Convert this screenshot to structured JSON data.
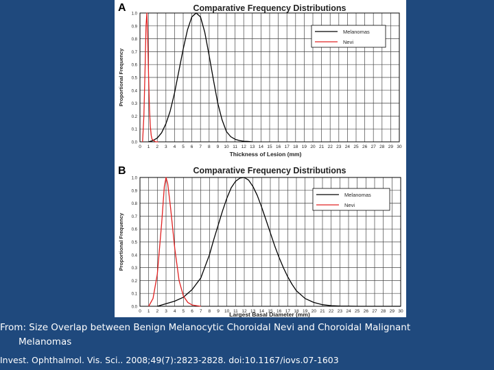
{
  "colors": {
    "background": "#1f497d",
    "caption_text": "#ffffff",
    "melanomas": "#000000",
    "nevi": "#e02020",
    "grid": "#444444"
  },
  "caption": {
    "from_line1": "From: Size Overlap between Benign Melanocytic Choroidal Nevi and Choroidal Malignant",
    "from_line2": "Melanomas",
    "citation": "Invest. Ophthalmol. Vis. Sci.. 2008;49(7):2823-2828. doi:10.1167/iovs.07-1603"
  },
  "chart_data": [
    {
      "panel": "A",
      "type": "line",
      "title": "Comparative Frequency Distributions",
      "xlabel": "Thickness of Lesion (mm)",
      "ylabel": "Proportional Frequency",
      "xlim": [
        0,
        30
      ],
      "ylim": [
        0,
        1.0
      ],
      "xticks": [
        0,
        1,
        2,
        3,
        4,
        5,
        6,
        7,
        8,
        9,
        10,
        11,
        12,
        13,
        14,
        15,
        16,
        17,
        18,
        19,
        20,
        21,
        22,
        23,
        24,
        25,
        26,
        27,
        28,
        29,
        30
      ],
      "yticks": [
        0.0,
        0.1,
        0.2,
        0.3,
        0.4,
        0.5,
        0.6,
        0.7,
        0.8,
        0.9,
        1.0
      ],
      "grid": true,
      "legend": {
        "position": "top-right",
        "entries": [
          "Melanomas",
          "Nevi"
        ]
      },
      "series": [
        {
          "name": "Melanomas",
          "x": [
            1.0,
            1.5,
            2.0,
            2.5,
            3.0,
            3.5,
            4.0,
            4.5,
            5.0,
            5.5,
            6.0,
            6.5,
            7.0,
            7.5,
            8.0,
            8.5,
            9.0,
            9.5,
            10.0,
            10.5,
            11.0,
            11.5,
            12.0,
            12.5,
            13.0
          ],
          "values": [
            0.0,
            0.01,
            0.03,
            0.07,
            0.14,
            0.24,
            0.38,
            0.55,
            0.72,
            0.87,
            0.97,
            1.0,
            0.97,
            0.85,
            0.67,
            0.48,
            0.3,
            0.17,
            0.08,
            0.04,
            0.02,
            0.01,
            0.005,
            0.003,
            0.0
          ]
        },
        {
          "name": "Nevi",
          "x": [
            0.3,
            0.45,
            0.6,
            0.7,
            0.8,
            0.9,
            1.0,
            1.1,
            1.2,
            1.3,
            1.4,
            1.6,
            1.8,
            2.1
          ],
          "values": [
            0.0,
            0.2,
            0.6,
            0.9,
            1.0,
            0.8,
            0.5,
            0.25,
            0.12,
            0.05,
            0.02,
            0.01,
            0.0,
            0.0
          ]
        }
      ]
    },
    {
      "panel": "B",
      "type": "line",
      "title": "Comparative Frequency Distributions",
      "xlabel": "Largest Basal Diameter (mm)",
      "ylabel": "Proportional Frequency",
      "xlim": [
        0,
        30
      ],
      "ylim": [
        0,
        1.0
      ],
      "xticks": [
        0,
        1,
        2,
        3,
        4,
        5,
        6,
        7,
        8,
        9,
        10,
        11,
        12,
        13,
        14,
        15,
        16,
        17,
        18,
        19,
        20,
        21,
        22,
        23,
        24,
        25,
        26,
        27,
        28,
        29,
        30
      ],
      "yticks": [
        0.0,
        0.1,
        0.2,
        0.3,
        0.4,
        0.5,
        0.6,
        0.7,
        0.8,
        0.9,
        1.0
      ],
      "grid": true,
      "legend": {
        "position": "top-right",
        "entries": [
          "Melanomas",
          "Nevi"
        ]
      },
      "series": [
        {
          "name": "Melanomas",
          "x": [
            2,
            3,
            4,
            5,
            6,
            7,
            7.5,
            8,
            8.5,
            9,
            9.5,
            10,
            10.5,
            11,
            11.5,
            12,
            12.5,
            13,
            13.5,
            14,
            14.5,
            15,
            15.5,
            16,
            16.5,
            17,
            17.5,
            18,
            19,
            20,
            21,
            22,
            23,
            24,
            25,
            26,
            27,
            28,
            29,
            30
          ],
          "values": [
            0.0,
            0.02,
            0.04,
            0.07,
            0.13,
            0.22,
            0.31,
            0.4,
            0.52,
            0.63,
            0.74,
            0.84,
            0.92,
            0.97,
            0.995,
            1.0,
            0.98,
            0.93,
            0.86,
            0.77,
            0.67,
            0.57,
            0.47,
            0.38,
            0.3,
            0.23,
            0.17,
            0.12,
            0.06,
            0.03,
            0.012,
            0.005,
            0.002,
            0.001,
            0.0,
            0.0,
            0.0,
            0.0,
            0.0,
            0.0
          ]
        },
        {
          "name": "Nevi",
          "x": [
            1.0,
            1.5,
            2.0,
            2.5,
            2.8,
            3.0,
            3.2,
            3.5,
            4.0,
            4.5,
            5.0,
            5.5,
            6.0,
            6.5,
            7.0
          ],
          "values": [
            0.0,
            0.06,
            0.25,
            0.65,
            0.93,
            1.0,
            0.95,
            0.78,
            0.45,
            0.2,
            0.08,
            0.03,
            0.01,
            0.005,
            0.0
          ]
        }
      ]
    }
  ]
}
